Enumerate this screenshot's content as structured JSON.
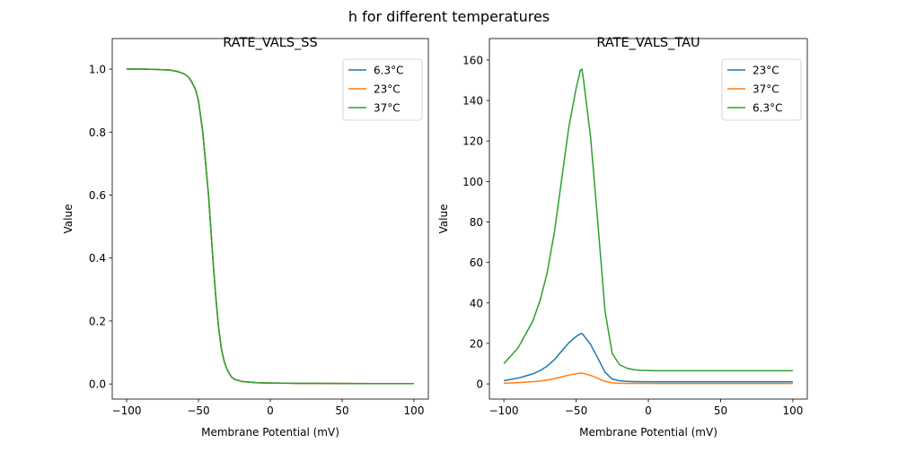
{
  "figure": {
    "suptitle": "h for different temperatures"
  },
  "chart_data": [
    {
      "type": "line",
      "title": "RATE_VALS_SS",
      "xlabel": "Membrane Potential (mV)",
      "ylabel": "Value",
      "xlim": [
        -110,
        110
      ],
      "ylim": [
        -0.048,
        1.097
      ],
      "xticks": [
        -100,
        -50,
        0,
        50,
        100
      ],
      "xtick_labels": [
        "−100",
        "−50",
        "0",
        "50",
        "100"
      ],
      "yticks": [
        0,
        0.2,
        0.4,
        0.6,
        0.8,
        1.0
      ],
      "ytick_labels": [
        "0.0",
        "0.2",
        "0.4",
        "0.6",
        "0.8",
        "1.0"
      ],
      "grid": false,
      "legend": "top-right",
      "x": [
        -100,
        -90,
        -80,
        -70,
        -65,
        -60,
        -57,
        -55,
        -52,
        -50,
        -47,
        -45,
        -43,
        -40,
        -38,
        -36,
        -34,
        -32,
        -30,
        -27,
        -25,
        -20,
        -15,
        -10,
        0,
        10,
        20,
        30,
        50,
        75,
        100
      ],
      "series": [
        {
          "name": "6.3°C",
          "color": "#1f77b4",
          "values": [
            1,
            1,
            0.999,
            0.997,
            0.993,
            0.985,
            0.975,
            0.962,
            0.935,
            0.9,
            0.8,
            0.7,
            0.6,
            0.4,
            0.28,
            0.18,
            0.11,
            0.07,
            0.045,
            0.022,
            0.015,
            0.008,
            0.006,
            0.004,
            0.003,
            0.0025,
            0.002,
            0.0018,
            0.0015,
            0.0012,
            0.001
          ]
        },
        {
          "name": "23°C",
          "color": "#ff7f0e",
          "values": [
            1,
            1,
            0.999,
            0.997,
            0.993,
            0.985,
            0.975,
            0.962,
            0.935,
            0.9,
            0.8,
            0.7,
            0.6,
            0.4,
            0.28,
            0.18,
            0.11,
            0.07,
            0.045,
            0.022,
            0.015,
            0.008,
            0.006,
            0.004,
            0.003,
            0.0025,
            0.002,
            0.0018,
            0.0015,
            0.0012,
            0.001
          ]
        },
        {
          "name": "37°C",
          "color": "#2ca02c",
          "values": [
            1,
            1,
            0.999,
            0.997,
            0.993,
            0.985,
            0.975,
            0.962,
            0.935,
            0.9,
            0.8,
            0.7,
            0.6,
            0.4,
            0.28,
            0.18,
            0.11,
            0.07,
            0.045,
            0.022,
            0.015,
            0.008,
            0.006,
            0.004,
            0.003,
            0.0025,
            0.002,
            0.0018,
            0.0015,
            0.0012,
            0.001
          ]
        }
      ]
    },
    {
      "type": "line",
      "title": "RATE_VALS_TAU",
      "xlabel": "Membrane Potential (mV)",
      "ylabel": "Value",
      "xlim": [
        -110,
        110
      ],
      "ylim": [
        -7.5,
        170.6
      ],
      "xticks": [
        -100,
        -50,
        0,
        50,
        100
      ],
      "xtick_labels": [
        "−100",
        "−50",
        "0",
        "50",
        "100"
      ],
      "yticks": [
        0,
        20,
        40,
        60,
        80,
        100,
        120,
        140,
        160
      ],
      "ytick_labels": [
        "0",
        "20",
        "40",
        "60",
        "80",
        "100",
        "120",
        "140",
        "160"
      ],
      "grid": false,
      "legend": "top-right",
      "x": [
        -100,
        -95,
        -90,
        -85,
        -80,
        -75,
        -70,
        -65,
        -60,
        -55,
        -50,
        -47,
        -46,
        -45,
        -40,
        -35,
        -30,
        -25,
        -20,
        -15,
        -10,
        -5,
        0,
        5,
        10,
        15,
        20,
        25,
        30,
        35,
        40,
        45,
        50,
        55,
        60,
        65,
        70,
        75,
        80,
        85,
        90,
        95,
        100
      ],
      "series": [
        {
          "name": "23°C",
          "color": "#1f77b4",
          "values": [
            1.6,
            2.24,
            2.88,
            3.92,
            4.96,
            6.56,
            8.8,
            12,
            16.2,
            20.3,
            23.4,
            24.8,
            24.9,
            24.2,
            19.5,
            12.8,
            5.76,
            2.4,
            1.52,
            1.25,
            1.12,
            1.07,
            1.06,
            1.04,
            1.04,
            1.04,
            1.04,
            1.04,
            1.04,
            1.04,
            1.04,
            1.04,
            1.04,
            1.04,
            1.04,
            1.04,
            1.04,
            1.04,
            1.04,
            1.04,
            1.04,
            1.04,
            1.04
          ]
        },
        {
          "name": "37°C",
          "color": "#ff7f0e",
          "values": [
            0.34,
            0.48,
            0.62,
            0.84,
            1.07,
            1.41,
            1.9,
            2.59,
            3.48,
            4.38,
            5.03,
            5.34,
            5.36,
            5.21,
            4.2,
            2.76,
            1.24,
            0.52,
            0.33,
            0.27,
            0.24,
            0.23,
            0.23,
            0.22,
            0.22,
            0.22,
            0.22,
            0.22,
            0.22,
            0.22,
            0.22,
            0.22,
            0.22,
            0.22,
            0.22,
            0.22,
            0.22,
            0.22,
            0.22,
            0.22,
            0.22,
            0.22,
            0.22
          ]
        },
        {
          "name": "6.3°C",
          "color": "#2ca02c",
          "values": [
            10,
            14,
            18,
            24.5,
            31,
            41,
            55,
            75,
            101,
            127,
            146,
            155,
            155.5,
            151,
            122,
            80,
            36,
            15,
            9.5,
            7.8,
            7,
            6.7,
            6.6,
            6.5,
            6.5,
            6.5,
            6.5,
            6.5,
            6.5,
            6.5,
            6.5,
            6.5,
            6.5,
            6.5,
            6.5,
            6.5,
            6.5,
            6.5,
            6.5,
            6.5,
            6.5,
            6.5,
            6.5
          ]
        }
      ]
    }
  ]
}
